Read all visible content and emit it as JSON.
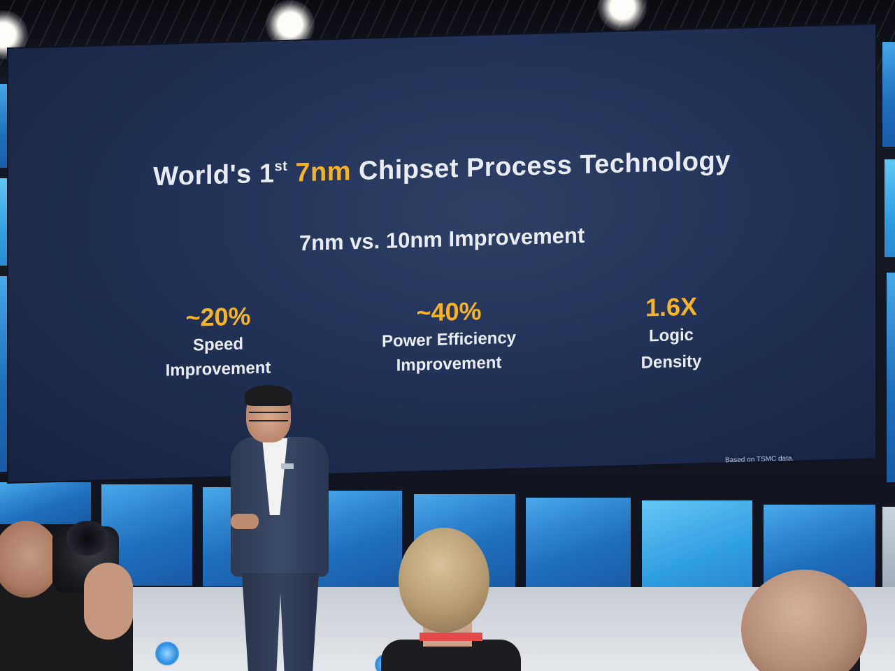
{
  "slide": {
    "title_prefix": "World's 1",
    "title_superscript": "st",
    "title_accent": "7nm",
    "title_suffix": "Chipset Process Technology",
    "subtitle": "7nm vs. 10nm Improvement",
    "metrics": [
      {
        "value": "~20%",
        "label": "Speed\nImprovement"
      },
      {
        "value": "~40%",
        "label": "Power Efficiency\nImprovement"
      },
      {
        "value": "1.6X",
        "label": "Logic\nDensity"
      }
    ],
    "footnote": "Based on TSMC data."
  },
  "colors": {
    "slide_background": "#24335a",
    "accent": "#f5b427",
    "text": "#e9ecf2",
    "led_wall": "#2a8be0"
  },
  "scene": {
    "objects": [
      "ceiling-light",
      "led-wall-panel",
      "projection-screen",
      "presenter",
      "photographer",
      "audience-member"
    ]
  }
}
